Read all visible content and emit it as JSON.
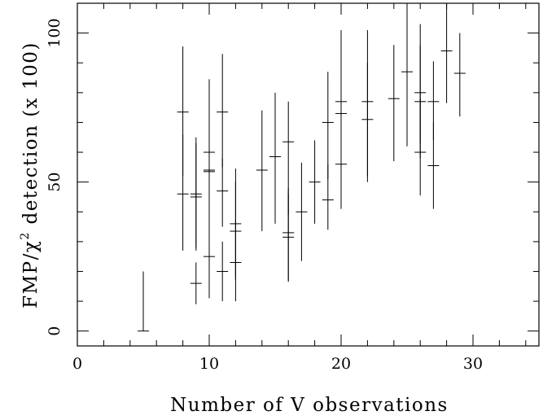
{
  "chart_data": {
    "type": "scatter",
    "title": "",
    "xlabel": "Number of V observations",
    "ylabel_prefix": "FMP/",
    "ylabel_chi": "χ",
    "ylabel_sup": "2",
    "ylabel_suffix": " detection (x 100)",
    "xlim": [
      0,
      35
    ],
    "ylim": [
      -5,
      110
    ],
    "x_ticks": [
      0,
      10,
      20,
      30
    ],
    "y_ticks": [
      0,
      50,
      100
    ],
    "x_minor_step": 2,
    "y_minor_step": 10,
    "grid": false,
    "marker": "plus-with-vertical-error-bar",
    "points": [
      {
        "x": 5,
        "y": 0,
        "lo": 0,
        "hi": 20
      },
      {
        "x": 8,
        "y": 73.5,
        "lo": 52,
        "hi": 95.5
      },
      {
        "x": 8,
        "y": 46,
        "lo": 27,
        "hi": 66
      },
      {
        "x": 9,
        "y": 46,
        "lo": 27,
        "hi": 65
      },
      {
        "x": 9,
        "y": 45,
        "lo": 28,
        "hi": 63
      },
      {
        "x": 9,
        "y": 16,
        "lo": 9,
        "hi": 23
      },
      {
        "x": 10,
        "y": 60,
        "lo": 36,
        "hi": 84.5
      },
      {
        "x": 10,
        "y": 54,
        "lo": 34,
        "hi": 72
      },
      {
        "x": 10,
        "y": 53.5,
        "lo": 36,
        "hi": 73
      },
      {
        "x": 10,
        "y": 25,
        "lo": 11,
        "hi": 40
      },
      {
        "x": 11,
        "y": 73.5,
        "lo": 55,
        "hi": 93
      },
      {
        "x": 11,
        "y": 47,
        "lo": 35,
        "hi": 58
      },
      {
        "x": 11,
        "y": 20,
        "lo": 10,
        "hi": 30
      },
      {
        "x": 12,
        "y": 36,
        "lo": 18,
        "hi": 54.5
      },
      {
        "x": 12,
        "y": 33.5,
        "lo": 17,
        "hi": 50
      },
      {
        "x": 12,
        "y": 23,
        "lo": 10,
        "hi": 37
      },
      {
        "x": 14,
        "y": 54,
        "lo": 33.5,
        "hi": 74
      },
      {
        "x": 15,
        "y": 58.5,
        "lo": 36,
        "hi": 80
      },
      {
        "x": 16,
        "y": 63.5,
        "lo": 39,
        "hi": 77
      },
      {
        "x": 16,
        "y": 33,
        "lo": 17,
        "hi": 48
      },
      {
        "x": 16,
        "y": 31.5,
        "lo": 16.5,
        "hi": 46
      },
      {
        "x": 17,
        "y": 40,
        "lo": 23.5,
        "hi": 56.5
      },
      {
        "x": 18,
        "y": 50,
        "lo": 36,
        "hi": 64
      },
      {
        "x": 19,
        "y": 70,
        "lo": 51,
        "hi": 87
      },
      {
        "x": 19,
        "y": 44,
        "lo": 34,
        "hi": 56
      },
      {
        "x": 20,
        "y": 77,
        "lo": 57,
        "hi": 101
      },
      {
        "x": 20,
        "y": 73,
        "lo": 52,
        "hi": 98
      },
      {
        "x": 20,
        "y": 56,
        "lo": 41,
        "hi": 71
      },
      {
        "x": 22,
        "y": 77,
        "lo": 50,
        "hi": 101
      },
      {
        "x": 22,
        "y": 71,
        "lo": 52,
        "hi": 90
      },
      {
        "x": 24,
        "y": 78,
        "lo": 57,
        "hi": 96
      },
      {
        "x": 25,
        "y": 87,
        "lo": 62,
        "hi": 110
      },
      {
        "x": 26,
        "y": 80,
        "lo": 63,
        "hi": 103
      },
      {
        "x": 26,
        "y": 77,
        "lo": 58,
        "hi": 96
      },
      {
        "x": 26,
        "y": 60,
        "lo": 45.5,
        "hi": 78
      },
      {
        "x": 27,
        "y": 77,
        "lo": 64,
        "hi": 90.5
      },
      {
        "x": 27,
        "y": 55.5,
        "lo": 41,
        "hi": 70
      },
      {
        "x": 28,
        "y": 94,
        "lo": 76.5,
        "hi": 110
      },
      {
        "x": 29,
        "y": 86.5,
        "lo": 72,
        "hi": 100
      }
    ]
  }
}
